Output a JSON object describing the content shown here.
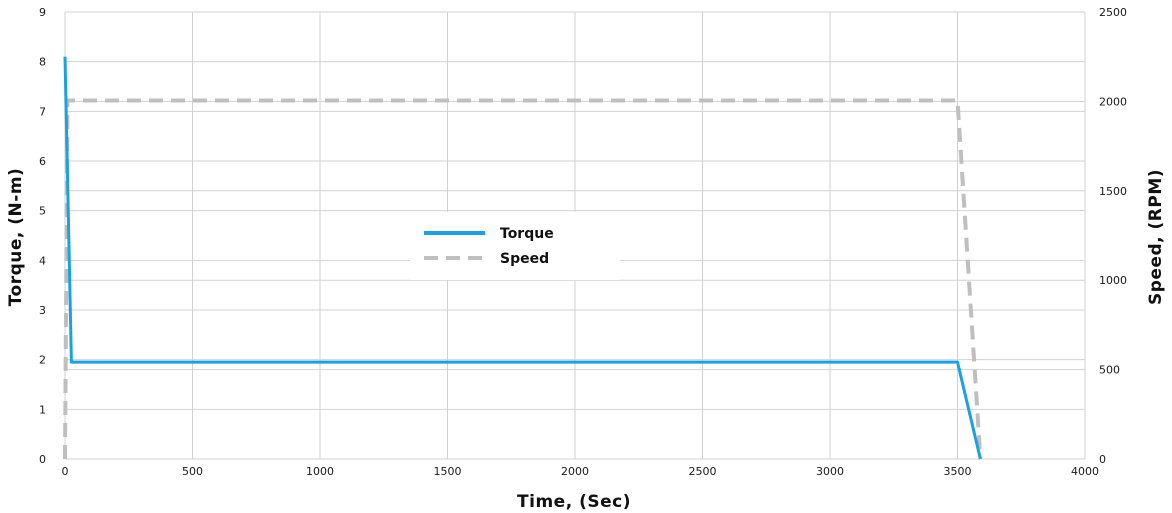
{
  "chart_data": {
    "type": "line",
    "xlabel": "Time, (Sec)",
    "ylabel": "Torque, (N-m)",
    "y2label": "Speed, (RPM)",
    "xlim": [
      0,
      4000
    ],
    "ylim": [
      0,
      9
    ],
    "y2lim": [
      0,
      2500
    ],
    "x_ticks": [
      0,
      500,
      1000,
      1500,
      2000,
      2500,
      3000,
      3500,
      4000
    ],
    "y_ticks": [
      0,
      1,
      2,
      3,
      4,
      5,
      6,
      7,
      8,
      9
    ],
    "y2_ticks": [
      0,
      500,
      1000,
      1500,
      2000,
      2500
    ],
    "grid": true,
    "legend": "center",
    "series": [
      {
        "name": "Torque",
        "axis": "left",
        "color": "#1ba1e2",
        "style": "solid",
        "x": [
          0,
          25,
          3500,
          3590
        ],
        "y": [
          8.1,
          1.95,
          1.95,
          0
        ]
      },
      {
        "name": "Speed",
        "axis": "right",
        "color": "#bfbfbf",
        "style": "dashed",
        "x": [
          0,
          10,
          3500,
          3590
        ],
        "y": [
          0,
          2005,
          2005,
          0
        ]
      }
    ]
  }
}
